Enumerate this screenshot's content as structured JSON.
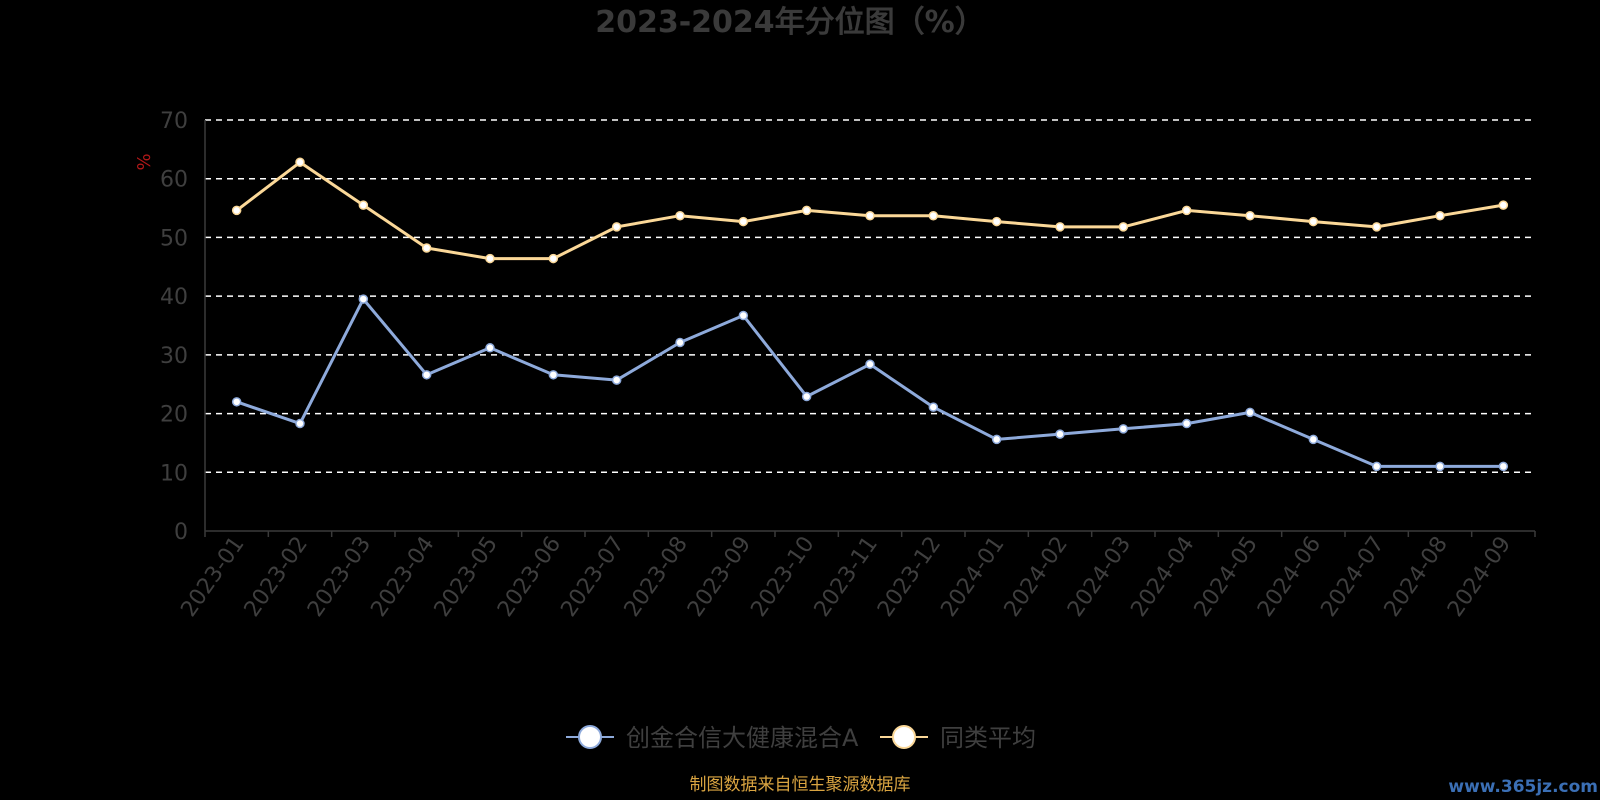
{
  "chart_data": {
    "type": "line",
    "title": "2023-2024年分位图（%）",
    "ylabel": "%",
    "xlabel": "",
    "ylim": [
      0,
      70
    ],
    "yticks": [
      0,
      10,
      20,
      30,
      40,
      50,
      60,
      70
    ],
    "grid": true,
    "legend_position": "bottom",
    "categories": [
      "2023-01",
      "2023-02",
      "2023-03",
      "2023-04",
      "2023-05",
      "2023-06",
      "2023-07",
      "2023-08",
      "2023-09",
      "2023-10",
      "2023-11",
      "2023-12",
      "2024-01",
      "2024-02",
      "2024-03",
      "2024-04",
      "2024-05",
      "2024-06",
      "2024-07",
      "2024-08",
      "2024-09"
    ],
    "series": [
      {
        "name": "创金合信大健康混合A",
        "color": "#8eaadb",
        "values": [
          22,
          18.3,
          39.5,
          26.6,
          31.2,
          26.6,
          25.7,
          32.1,
          36.7,
          22.9,
          28.4,
          21.1,
          15.6,
          16.5,
          17.4,
          18.3,
          20.2,
          15.6,
          11,
          11,
          11
        ]
      },
      {
        "name": "同类平均",
        "color": "#fbd898",
        "values": [
          54.6,
          62.8,
          55.5,
          48.2,
          46.4,
          46.4,
          51.8,
          53.7,
          52.7,
          54.6,
          53.7,
          53.7,
          52.7,
          51.8,
          51.8,
          54.6,
          53.7,
          52.7,
          51.8,
          53.7,
          55.5
        ]
      }
    ]
  },
  "footer": {
    "source": "制图数据来自恒生聚源数据库",
    "watermark": "www.365jz.com"
  }
}
